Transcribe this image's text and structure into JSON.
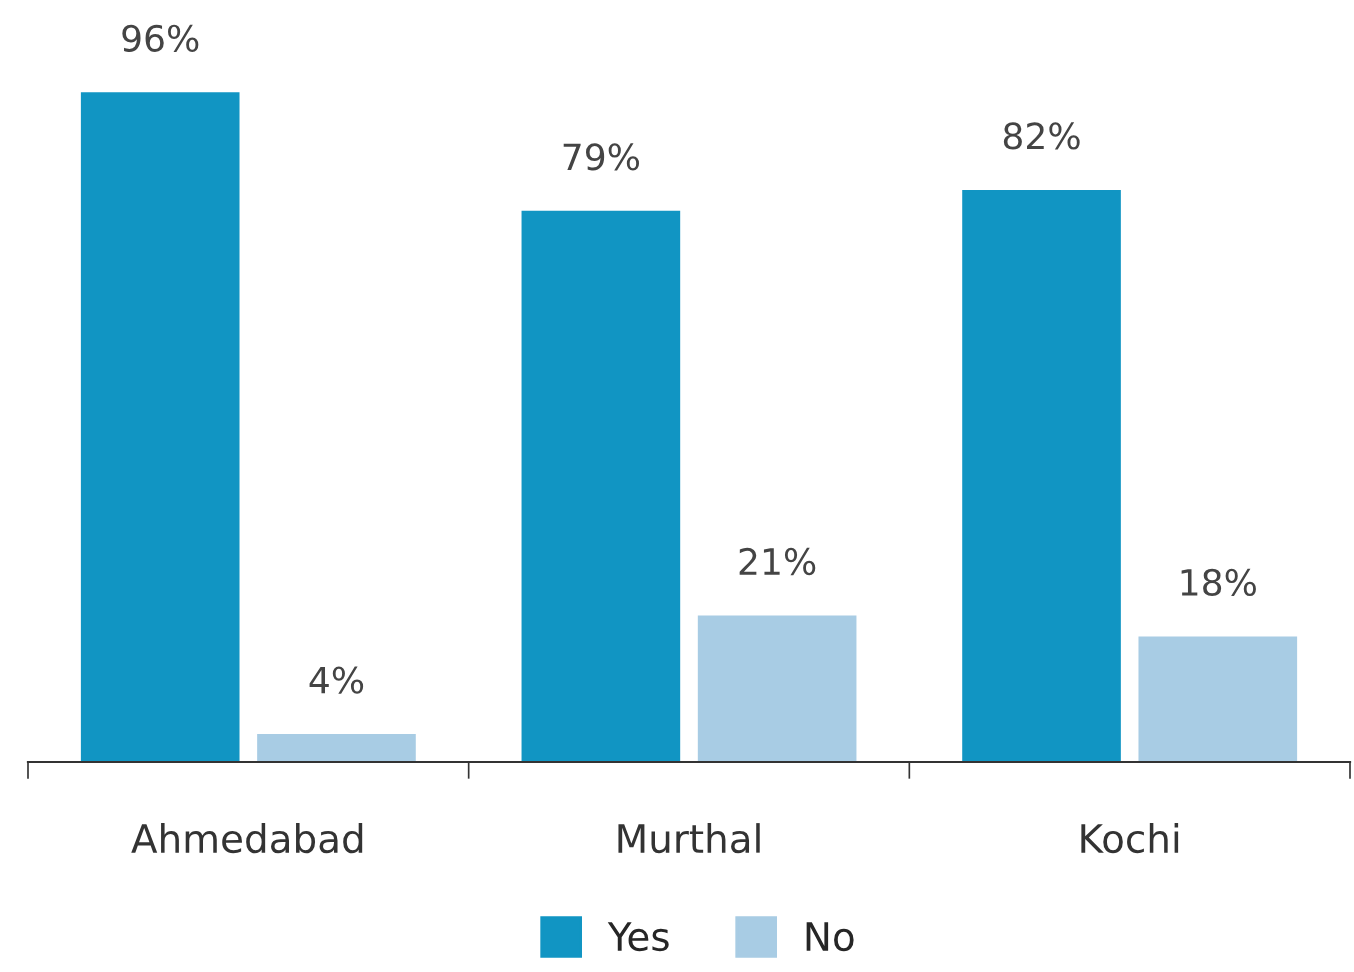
{
  "chart_data": {
    "type": "bar",
    "categories": [
      "Ahmedabad",
      "Murthal",
      "Kochi"
    ],
    "series": [
      {
        "name": "Yes",
        "color": "#1195c3",
        "values": [
          96,
          79,
          82
        ],
        "value_labels": [
          "96%",
          "79%",
          "82%"
        ]
      },
      {
        "name": "No",
        "color": "#a8cce4",
        "values": [
          4,
          21,
          18
        ],
        "value_labels": [
          "4%",
          "21%",
          "18%"
        ]
      }
    ],
    "legend": "bottom",
    "grid": false
  }
}
